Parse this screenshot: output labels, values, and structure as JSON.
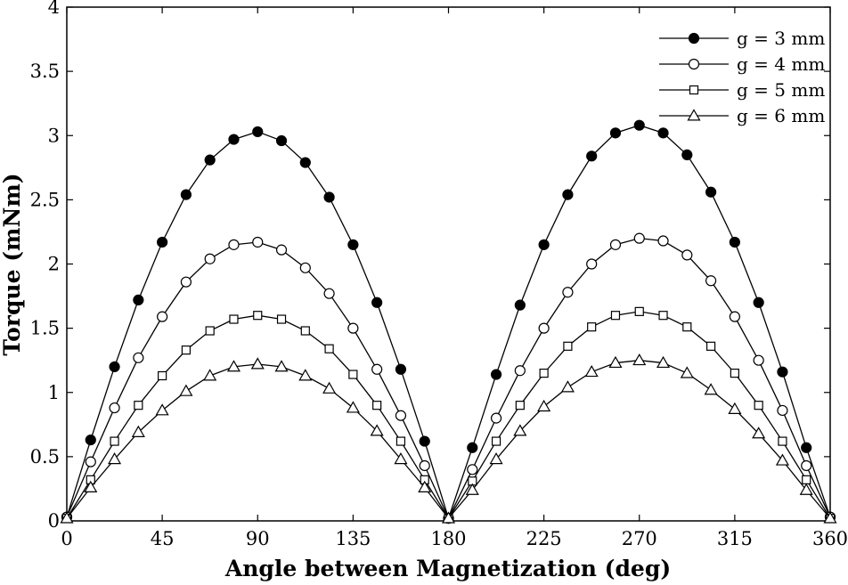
{
  "chart_data": {
    "type": "line",
    "title": "",
    "xlabel": "Angle between Magnetization (deg)",
    "ylabel": "Torque (mNm)",
    "xlim": [
      0,
      360
    ],
    "ylim": [
      0,
      4
    ],
    "xticks": [
      0,
      45,
      90,
      135,
      180,
      225,
      270,
      315,
      360
    ],
    "yticks": [
      0,
      0.5,
      1,
      1.5,
      2,
      2.5,
      3,
      3.5,
      4
    ],
    "xtick_labels": [
      "0",
      "45",
      "90",
      "135",
      "180",
      "225",
      "270",
      "315",
      "360"
    ],
    "ytick_labels": [
      "0",
      "0.5",
      "1",
      "1.5",
      "2",
      "2.5",
      "3",
      "3.5",
      "4"
    ],
    "grid": false,
    "legend_position": "top-right",
    "x": [
      0,
      11.25,
      22.5,
      33.75,
      45,
      56.25,
      67.5,
      78.75,
      90,
      101.25,
      112.5,
      123.75,
      135,
      146.25,
      157.5,
      168.75,
      180,
      191.25,
      202.5,
      213.75,
      225,
      236.25,
      247.5,
      258.75,
      270,
      281.25,
      292.5,
      303.75,
      315,
      326.25,
      337.5,
      348.75,
      360
    ],
    "series": [
      {
        "name": "g = 3 mm",
        "marker": "filled-circle",
        "values": [
          0.03,
          0.63,
          1.2,
          1.72,
          2.17,
          2.54,
          2.81,
          2.97,
          3.03,
          2.96,
          2.79,
          2.52,
          2.15,
          1.7,
          1.18,
          0.62,
          0.02,
          0.57,
          1.14,
          1.68,
          2.15,
          2.54,
          2.84,
          3.02,
          3.08,
          3.02,
          2.85,
          2.56,
          2.17,
          1.7,
          1.16,
          0.57,
          0.03
        ]
      },
      {
        "name": "g = 4 mm",
        "marker": "open-circle",
        "values": [
          0.03,
          0.46,
          0.88,
          1.27,
          1.59,
          1.86,
          2.04,
          2.15,
          2.17,
          2.11,
          1.97,
          1.77,
          1.5,
          1.18,
          0.82,
          0.43,
          0.02,
          0.4,
          0.8,
          1.17,
          1.5,
          1.78,
          2.0,
          2.15,
          2.2,
          2.18,
          2.07,
          1.87,
          1.59,
          1.25,
          0.86,
          0.43,
          0.03
        ]
      },
      {
        "name": "g = 5 mm",
        "marker": "open-square",
        "values": [
          0.02,
          0.32,
          0.62,
          0.9,
          1.13,
          1.33,
          1.48,
          1.57,
          1.6,
          1.57,
          1.48,
          1.34,
          1.14,
          0.9,
          0.62,
          0.32,
          0.02,
          0.31,
          0.62,
          0.9,
          1.15,
          1.36,
          1.51,
          1.6,
          1.63,
          1.6,
          1.51,
          1.36,
          1.15,
          0.9,
          0.62,
          0.32,
          0.02
        ]
      },
      {
        "name": "g = 6 mm",
        "marker": "open-triangle",
        "values": [
          0.02,
          0.26,
          0.48,
          0.69,
          0.86,
          1.01,
          1.13,
          1.2,
          1.22,
          1.2,
          1.13,
          1.03,
          0.88,
          0.7,
          0.48,
          0.26,
          0.02,
          0.24,
          0.48,
          0.7,
          0.89,
          1.04,
          1.16,
          1.23,
          1.25,
          1.23,
          1.15,
          1.02,
          0.87,
          0.68,
          0.47,
          0.24,
          0.02
        ]
      }
    ]
  }
}
